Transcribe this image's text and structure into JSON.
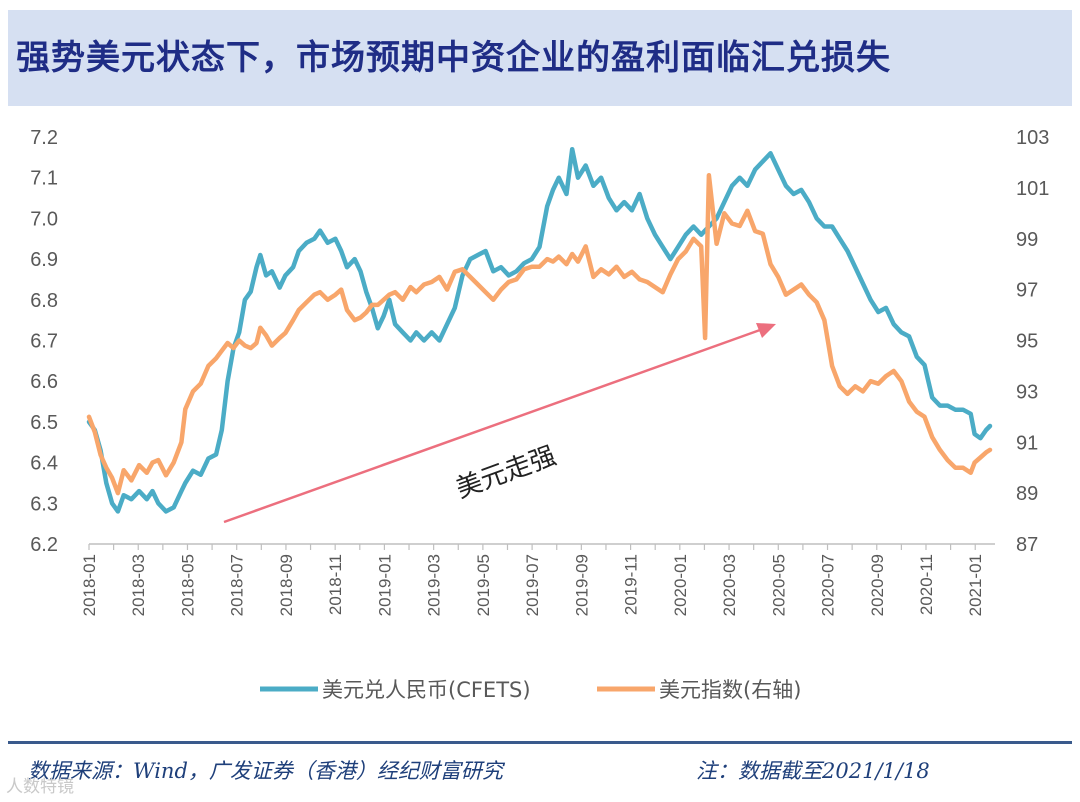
{
  "header": {
    "title": "强势美元状态下，市场预期中资企业的盈利面临汇兑损失"
  },
  "footer": {
    "source": "数据来源：Wind，广发证券（香港）经纪财富研究",
    "note": "注：数据截至2021/1/18",
    "watermark": "人数特镜"
  },
  "colors": {
    "cny": "#4bacc6",
    "dxy": "#f8a66b",
    "arrow": "#ec6f7e",
    "title_bg": "#d6e0f2",
    "title_text": "#1f2d86"
  },
  "chart_data": {
    "type": "line",
    "x": [
      "2018-01",
      "2018-03",
      "2018-05",
      "2018-07",
      "2018-09",
      "2018-11",
      "2019-01",
      "2019-03",
      "2019-05",
      "2019-07",
      "2019-09",
      "2019-11",
      "2020-01",
      "2020-03",
      "2020-05",
      "2020-07",
      "2020-09",
      "2020-11",
      "2021-01"
    ],
    "x_index": [
      0,
      1,
      2,
      3,
      4,
      5,
      6,
      7,
      8,
      9,
      10,
      11,
      12,
      13,
      14,
      15,
      16,
      17,
      18,
      19,
      20,
      21,
      22,
      23,
      24,
      25,
      26,
      27,
      28,
      29,
      30,
      31,
      32,
      33,
      34,
      35,
      36,
      37
    ],
    "series": [
      {
        "name": "美元兑人民币(CFETS)",
        "axis": "left",
        "points": [
          [
            0,
            6.5
          ],
          [
            0.3,
            6.48
          ],
          [
            0.6,
            6.43
          ],
          [
            0.9,
            6.35
          ],
          [
            1.2,
            6.3
          ],
          [
            1.5,
            6.28
          ],
          [
            1.8,
            6.32
          ],
          [
            2.2,
            6.31
          ],
          [
            2.6,
            6.33
          ],
          [
            3.0,
            6.31
          ],
          [
            3.3,
            6.33
          ],
          [
            3.6,
            6.3
          ],
          [
            4.0,
            6.28
          ],
          [
            4.4,
            6.29
          ],
          [
            4.8,
            6.33
          ],
          [
            5.0,
            6.35
          ],
          [
            5.4,
            6.38
          ],
          [
            5.8,
            6.37
          ],
          [
            6.2,
            6.41
          ],
          [
            6.6,
            6.42
          ],
          [
            6.9,
            6.48
          ],
          [
            7.2,
            6.6
          ],
          [
            7.5,
            6.68
          ],
          [
            7.8,
            6.72
          ],
          [
            8.1,
            6.8
          ],
          [
            8.4,
            6.82
          ],
          [
            8.7,
            6.88
          ],
          [
            8.9,
            6.91
          ],
          [
            9.2,
            6.86
          ],
          [
            9.5,
            6.87
          ],
          [
            9.9,
            6.83
          ],
          [
            10.2,
            6.86
          ],
          [
            10.6,
            6.88
          ],
          [
            10.9,
            6.92
          ],
          [
            11.3,
            6.94
          ],
          [
            11.7,
            6.95
          ],
          [
            12.0,
            6.97
          ],
          [
            12.4,
            6.94
          ],
          [
            12.8,
            6.95
          ],
          [
            13.1,
            6.92
          ],
          [
            13.4,
            6.88
          ],
          [
            13.8,
            6.9
          ],
          [
            14.1,
            6.87
          ],
          [
            14.4,
            6.82
          ],
          [
            14.7,
            6.78
          ],
          [
            15.0,
            6.73
          ],
          [
            15.3,
            6.76
          ],
          [
            15.6,
            6.8
          ],
          [
            15.9,
            6.74
          ],
          [
            16.3,
            6.72
          ],
          [
            16.7,
            6.7
          ],
          [
            17.0,
            6.72
          ],
          [
            17.4,
            6.7
          ],
          [
            17.8,
            6.72
          ],
          [
            18.2,
            6.7
          ],
          [
            18.6,
            6.74
          ],
          [
            19.0,
            6.78
          ],
          [
            19.4,
            6.86
          ],
          [
            19.8,
            6.9
          ],
          [
            20.2,
            6.91
          ],
          [
            20.6,
            6.92
          ],
          [
            21.0,
            6.87
          ],
          [
            21.4,
            6.88
          ],
          [
            21.8,
            6.86
          ],
          [
            22.2,
            6.87
          ],
          [
            22.6,
            6.89
          ],
          [
            23.0,
            6.9
          ],
          [
            23.4,
            6.93
          ],
          [
            23.8,
            7.03
          ],
          [
            24.1,
            7.07
          ],
          [
            24.4,
            7.1
          ],
          [
            24.8,
            7.06
          ],
          [
            25.1,
            7.17
          ],
          [
            25.4,
            7.1
          ],
          [
            25.8,
            7.13
          ],
          [
            26.2,
            7.08
          ],
          [
            26.6,
            7.1
          ],
          [
            27.0,
            7.05
          ],
          [
            27.4,
            7.02
          ],
          [
            27.8,
            7.04
          ],
          [
            28.2,
            7.02
          ],
          [
            28.6,
            7.06
          ],
          [
            29.0,
            7.0
          ],
          [
            29.4,
            6.96
          ],
          [
            29.8,
            6.93
          ],
          [
            30.2,
            6.9
          ],
          [
            30.6,
            6.93
          ],
          [
            31.0,
            6.96
          ],
          [
            31.4,
            6.98
          ],
          [
            31.8,
            6.96
          ],
          [
            32.2,
            6.98
          ],
          [
            32.6,
            7.0
          ],
          [
            33.0,
            7.04
          ],
          [
            33.4,
            7.08
          ],
          [
            33.8,
            7.1
          ],
          [
            34.2,
            7.08
          ],
          [
            34.6,
            7.12
          ],
          [
            35.0,
            7.14
          ],
          [
            35.4,
            7.16
          ],
          [
            35.8,
            7.12
          ],
          [
            36.2,
            7.08
          ],
          [
            36.6,
            7.06
          ],
          [
            37.0,
            7.07
          ],
          [
            37.4,
            7.04
          ],
          [
            37.8,
            7.0
          ],
          [
            38.2,
            6.98
          ],
          [
            38.6,
            6.98
          ],
          [
            39.0,
            6.95
          ],
          [
            39.4,
            6.92
          ],
          [
            39.8,
            6.88
          ],
          [
            40.2,
            6.84
          ],
          [
            40.6,
            6.8
          ],
          [
            41.0,
            6.77
          ],
          [
            41.4,
            6.78
          ],
          [
            41.8,
            6.74
          ],
          [
            42.2,
            6.72
          ],
          [
            42.6,
            6.71
          ],
          [
            43.0,
            6.66
          ],
          [
            43.4,
            6.64
          ],
          [
            43.8,
            6.56
          ],
          [
            44.2,
            6.54
          ],
          [
            44.6,
            6.54
          ],
          [
            45.0,
            6.53
          ],
          [
            45.4,
            6.53
          ],
          [
            45.8,
            6.52
          ],
          [
            46.0,
            6.47
          ],
          [
            46.3,
            6.46
          ],
          [
            46.6,
            6.48
          ],
          [
            46.8,
            6.49
          ]
        ]
      },
      {
        "name": "美元指数(右轴)",
        "axis": "right",
        "points": [
          [
            0,
            92.0
          ],
          [
            0.3,
            91.4
          ],
          [
            0.6,
            90.5
          ],
          [
            0.9,
            90.0
          ],
          [
            1.2,
            89.6
          ],
          [
            1.5,
            89.0
          ],
          [
            1.8,
            89.9
          ],
          [
            2.2,
            89.5
          ],
          [
            2.6,
            90.1
          ],
          [
            3.0,
            89.8
          ],
          [
            3.3,
            90.2
          ],
          [
            3.6,
            90.3
          ],
          [
            4.0,
            89.7
          ],
          [
            4.4,
            90.2
          ],
          [
            4.8,
            91.0
          ],
          [
            5.0,
            92.3
          ],
          [
            5.4,
            93.0
          ],
          [
            5.8,
            93.3
          ],
          [
            6.2,
            94.0
          ],
          [
            6.6,
            94.3
          ],
          [
            6.9,
            94.6
          ],
          [
            7.2,
            94.9
          ],
          [
            7.5,
            94.7
          ],
          [
            7.8,
            95.0
          ],
          [
            8.1,
            94.8
          ],
          [
            8.4,
            94.7
          ],
          [
            8.7,
            94.9
          ],
          [
            8.9,
            95.5
          ],
          [
            9.2,
            95.2
          ],
          [
            9.5,
            94.8
          ],
          [
            9.9,
            95.1
          ],
          [
            10.2,
            95.3
          ],
          [
            10.6,
            95.8
          ],
          [
            10.9,
            96.2
          ],
          [
            11.3,
            96.5
          ],
          [
            11.7,
            96.8
          ],
          [
            12.0,
            96.9
          ],
          [
            12.4,
            96.6
          ],
          [
            12.8,
            96.8
          ],
          [
            13.1,
            97.0
          ],
          [
            13.4,
            96.2
          ],
          [
            13.8,
            95.8
          ],
          [
            14.1,
            95.9
          ],
          [
            14.4,
            96.1
          ],
          [
            14.7,
            96.4
          ],
          [
            15.0,
            96.4
          ],
          [
            15.3,
            96.6
          ],
          [
            15.6,
            96.8
          ],
          [
            15.9,
            96.9
          ],
          [
            16.3,
            96.6
          ],
          [
            16.7,
            97.1
          ],
          [
            17.0,
            96.9
          ],
          [
            17.4,
            97.2
          ],
          [
            17.8,
            97.3
          ],
          [
            18.2,
            97.5
          ],
          [
            18.6,
            97.0
          ],
          [
            19.0,
            97.7
          ],
          [
            19.4,
            97.8
          ],
          [
            19.8,
            97.5
          ],
          [
            20.2,
            97.2
          ],
          [
            20.6,
            96.9
          ],
          [
            21.0,
            96.6
          ],
          [
            21.4,
            97.0
          ],
          [
            21.8,
            97.3
          ],
          [
            22.2,
            97.4
          ],
          [
            22.6,
            97.8
          ],
          [
            23.0,
            97.9
          ],
          [
            23.4,
            97.9
          ],
          [
            23.8,
            98.2
          ],
          [
            24.1,
            98.1
          ],
          [
            24.4,
            98.3
          ],
          [
            24.8,
            98.0
          ],
          [
            25.1,
            98.4
          ],
          [
            25.4,
            98.1
          ],
          [
            25.8,
            98.7
          ],
          [
            26.2,
            97.5
          ],
          [
            26.6,
            97.8
          ],
          [
            27.0,
            97.6
          ],
          [
            27.4,
            97.9
          ],
          [
            27.8,
            97.5
          ],
          [
            28.2,
            97.7
          ],
          [
            28.6,
            97.4
          ],
          [
            29.0,
            97.3
          ],
          [
            29.4,
            97.1
          ],
          [
            29.8,
            96.9
          ],
          [
            30.2,
            97.6
          ],
          [
            30.6,
            98.2
          ],
          [
            31.0,
            98.5
          ],
          [
            31.4,
            99.0
          ],
          [
            31.8,
            98.7
          ],
          [
            32.0,
            95.1
          ],
          [
            32.2,
            101.5
          ],
          [
            32.6,
            98.8
          ],
          [
            33.0,
            100.0
          ],
          [
            33.4,
            99.6
          ],
          [
            33.8,
            99.5
          ],
          [
            34.2,
            100.1
          ],
          [
            34.6,
            99.3
          ],
          [
            35.0,
            99.2
          ],
          [
            35.4,
            98.0
          ],
          [
            35.8,
            97.5
          ],
          [
            36.2,
            96.8
          ],
          [
            36.6,
            97.0
          ],
          [
            37.0,
            97.2
          ],
          [
            37.4,
            96.8
          ],
          [
            37.8,
            96.5
          ],
          [
            38.2,
            95.8
          ],
          [
            38.6,
            94.0
          ],
          [
            39.0,
            93.2
          ],
          [
            39.4,
            92.9
          ],
          [
            39.8,
            93.2
          ],
          [
            40.2,
            93.0
          ],
          [
            40.6,
            93.4
          ],
          [
            41.0,
            93.3
          ],
          [
            41.4,
            93.6
          ],
          [
            41.8,
            93.8
          ],
          [
            42.2,
            93.4
          ],
          [
            42.6,
            92.6
          ],
          [
            43.0,
            92.2
          ],
          [
            43.4,
            92.0
          ],
          [
            43.8,
            91.2
          ],
          [
            44.2,
            90.7
          ],
          [
            44.6,
            90.3
          ],
          [
            45.0,
            90.0
          ],
          [
            45.4,
            90.0
          ],
          [
            45.8,
            89.8
          ],
          [
            46.0,
            90.2
          ],
          [
            46.3,
            90.4
          ],
          [
            46.6,
            90.6
          ],
          [
            46.8,
            90.7
          ]
        ]
      }
    ],
    "x_points_per_tick": 2.59,
    "yleft": {
      "min": 6.2,
      "max": 7.2,
      "ticks": [
        "7.2",
        "7.1",
        "7.0",
        "6.9",
        "6.8",
        "6.7",
        "6.6",
        "6.5",
        "6.4",
        "6.3",
        "6.2"
      ]
    },
    "yright": {
      "min": 87,
      "max": 103,
      "ticks": [
        "103",
        "101",
        "99",
        "97",
        "95",
        "93",
        "91",
        "89",
        "87"
      ]
    },
    "annotation": {
      "text": "美元走强"
    },
    "legend": [
      "美元兑人民币(CFETS)",
      "美元指数(右轴)"
    ],
    "grid": false
  }
}
